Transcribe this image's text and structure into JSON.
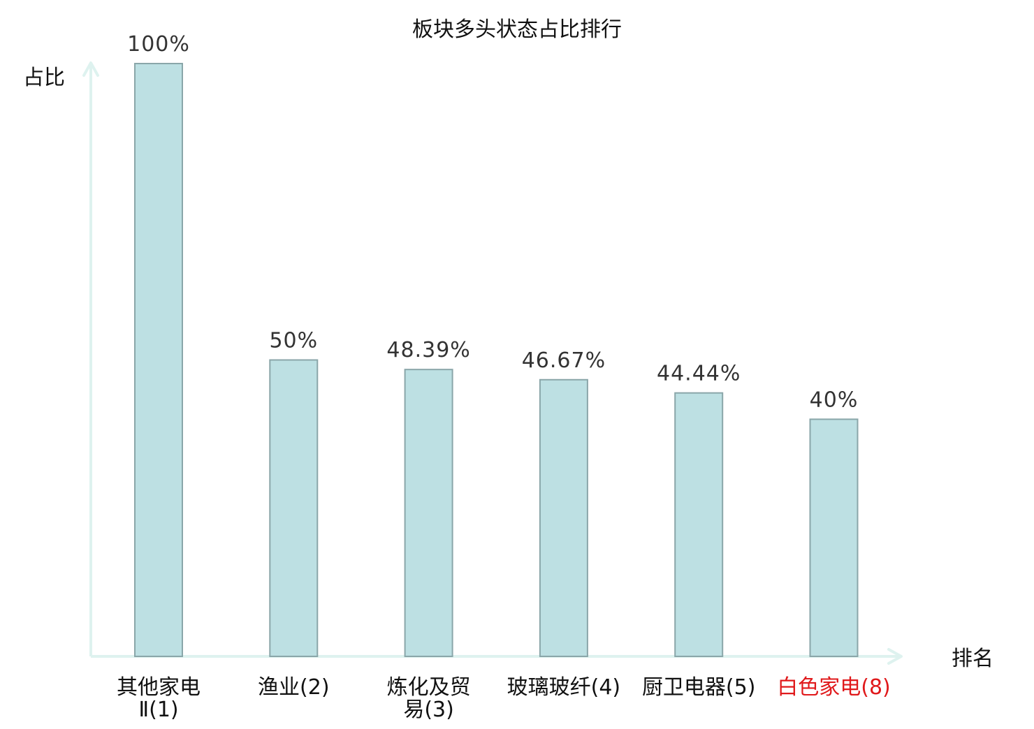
{
  "chart_data": {
    "type": "bar",
    "title": "板块多头状态占比排行",
    "xlabel": "排名",
    "ylabel": "占比",
    "ylim": [
      0,
      100
    ],
    "categories": [
      [
        "其他家电",
        "Ⅱ(1)"
      ],
      [
        "渔业(2)"
      ],
      [
        "炼化及贸",
        "易(3)"
      ],
      [
        "玻璃玻纤(4)"
      ],
      [
        "厨卫电器(5)"
      ],
      [
        "白色家电(8)"
      ]
    ],
    "values": [
      100,
      50,
      48.39,
      46.67,
      44.44,
      40
    ],
    "value_labels": [
      "100%",
      "50%",
      "48.39%",
      "46.67%",
      "44.44%",
      "40%"
    ],
    "highlight_index": 5,
    "colors": {
      "bar_fill": "#bde0e3",
      "bar_stroke": "#8aa6a9",
      "axis": "#def2ef",
      "label": "#333333",
      "highlight": "#e0191b"
    },
    "grid": false,
    "legend": "none"
  }
}
